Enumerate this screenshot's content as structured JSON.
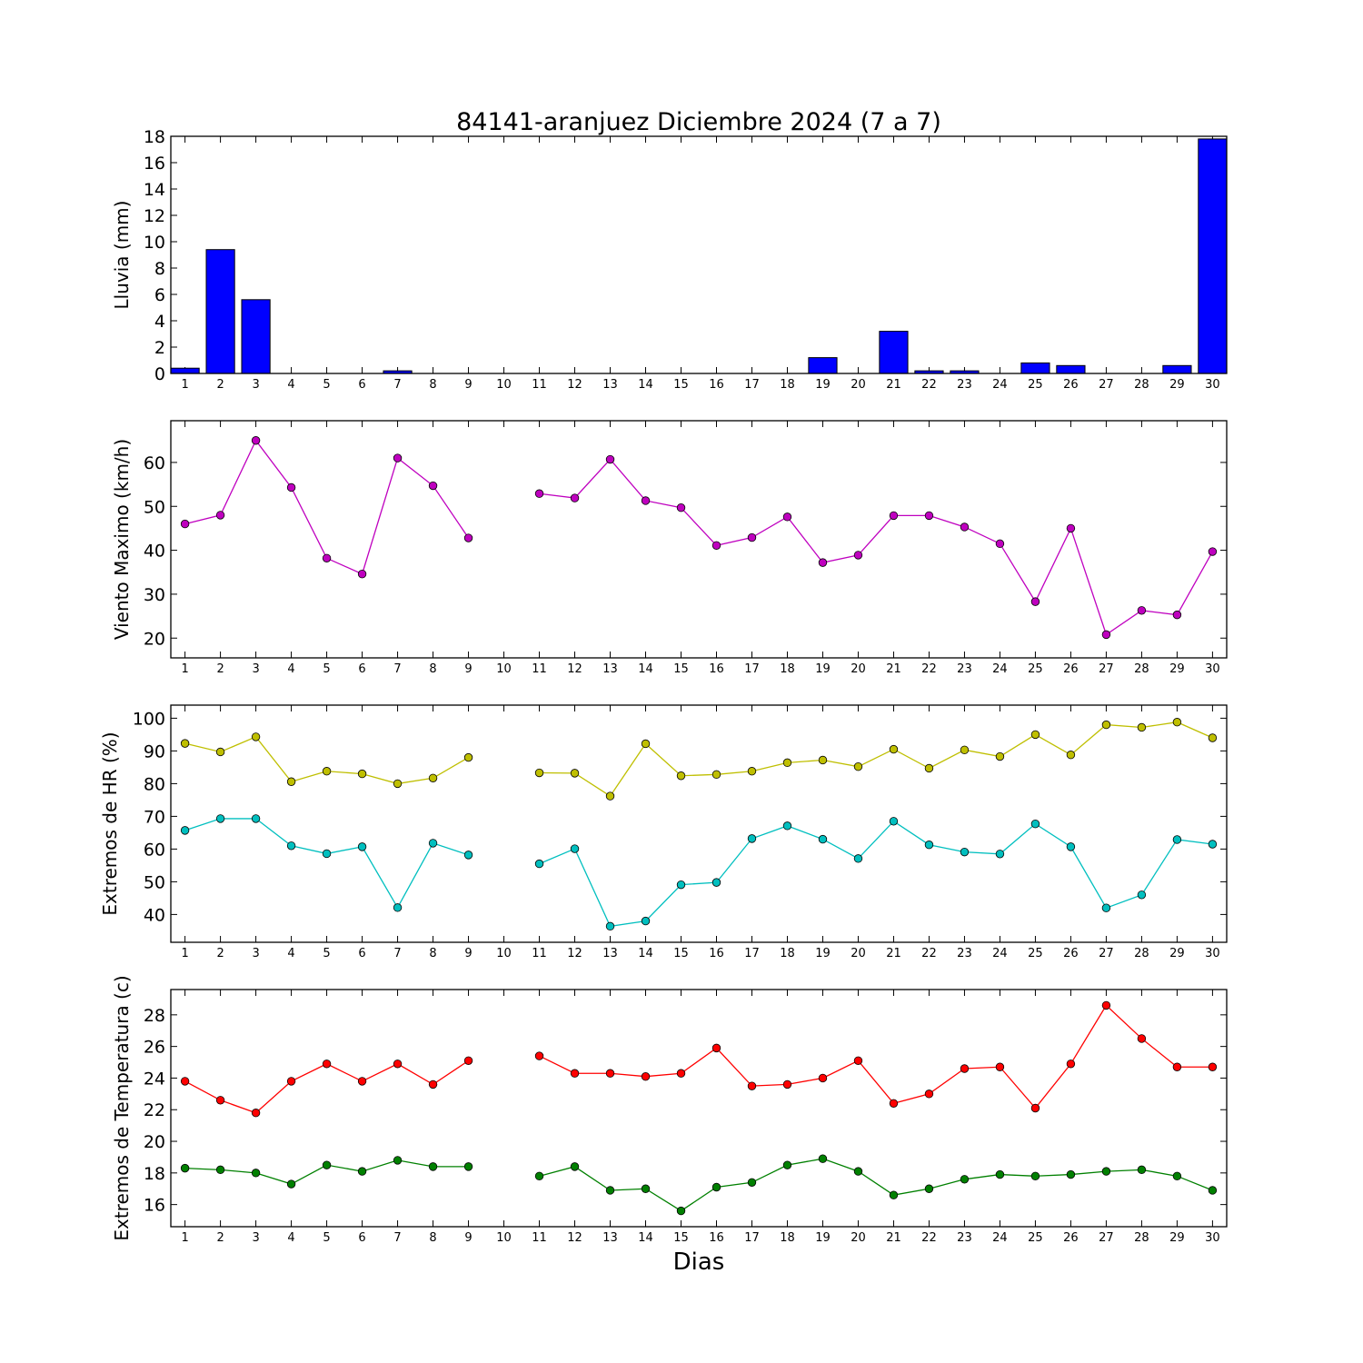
{
  "title": "84141-aranjuez Diciembre 2024  (7 a 7)",
  "xlabel": "Dias",
  "chart_data": [
    {
      "type": "bar",
      "ylabel": "Lluvia (mm)",
      "ylim": [
        0,
        18
      ],
      "yticks": [
        0,
        2,
        4,
        6,
        8,
        10,
        12,
        14,
        16,
        18
      ],
      "categories": [
        "1",
        "2",
        "3",
        "4",
        "5",
        "6",
        "7",
        "8",
        "9",
        "10",
        "11",
        "12",
        "13",
        "14",
        "15",
        "16",
        "17",
        "18",
        "19",
        "20",
        "21",
        "22",
        "23",
        "24",
        "25",
        "26",
        "27",
        "28",
        "29",
        "30"
      ],
      "values": [
        0.4,
        9.4,
        5.6,
        0,
        0,
        0,
        0.2,
        0,
        0,
        0,
        0,
        0,
        0,
        0,
        0,
        0,
        0,
        0,
        1.2,
        0,
        3.2,
        0.2,
        0.2,
        0,
        0.8,
        0.6,
        0,
        0,
        0.6,
        17.8
      ],
      "color": "#0000ff"
    },
    {
      "type": "line",
      "ylabel": "Viento Maximo (km/h)",
      "ylim": [
        15.5,
        69.5
      ],
      "yticks": [
        20,
        30,
        40,
        50,
        60
      ],
      "categories": [
        "1",
        "2",
        "3",
        "4",
        "5",
        "6",
        "7",
        "8",
        "9",
        "10",
        "11",
        "12",
        "13",
        "14",
        "15",
        "16",
        "17",
        "18",
        "19",
        "20",
        "21",
        "22",
        "23",
        "24",
        "25",
        "26",
        "27",
        "28",
        "29",
        "30"
      ],
      "series": [
        {
          "color": "#bf00bf",
          "values": [
            46,
            48,
            65,
            54.3,
            38.2,
            34.6,
            61,
            54.7,
            42.8,
            null,
            52.9,
            51.9,
            60.7,
            51.3,
            49.7,
            41.1,
            42.9,
            47.6,
            37.2,
            38.9,
            47.9,
            47.9,
            45.3,
            41.5,
            28.3,
            45,
            20.8,
            26.3,
            25.3,
            39.7
          ]
        }
      ]
    },
    {
      "type": "line",
      "ylabel": "Extremos de HR (%)",
      "ylim": [
        31.5,
        104
      ],
      "yticks": [
        40,
        50,
        60,
        70,
        80,
        90,
        100
      ],
      "categories": [
        "1",
        "2",
        "3",
        "4",
        "5",
        "6",
        "7",
        "8",
        "9",
        "10",
        "11",
        "12",
        "13",
        "14",
        "15",
        "16",
        "17",
        "18",
        "19",
        "20",
        "21",
        "22",
        "23",
        "24",
        "25",
        "26",
        "27",
        "28",
        "29",
        "30"
      ],
      "series": [
        {
          "color": "#bfbf00",
          "values": [
            92.3,
            89.7,
            94.3,
            80.6,
            83.8,
            83,
            80,
            81.7,
            88,
            null,
            83.3,
            83.2,
            76.2,
            92.2,
            82.4,
            82.8,
            83.8,
            86.4,
            87.2,
            85.2,
            90.5,
            84.7,
            90.3,
            88.3,
            95,
            88.8,
            98,
            97.2,
            98.8,
            94
          ]
        },
        {
          "color": "#00bfbf",
          "values": [
            65.7,
            69.3,
            69.3,
            61,
            58.6,
            60.7,
            42.1,
            61.8,
            58.2,
            null,
            55.5,
            60.1,
            36.4,
            38,
            49.1,
            49.8,
            63.2,
            67.1,
            63,
            57.1,
            68.5,
            61.3,
            59.1,
            58.5,
            67.7,
            60.7,
            42,
            46,
            62.9,
            61.5
          ]
        }
      ]
    },
    {
      "type": "line",
      "ylabel": "Extremos de Temperatura (c)",
      "ylim": [
        14.6,
        29.6
      ],
      "yticks": [
        16,
        18,
        20,
        22,
        24,
        26,
        28
      ],
      "categories": [
        "1",
        "2",
        "3",
        "4",
        "5",
        "6",
        "7",
        "8",
        "9",
        "10",
        "11",
        "12",
        "13",
        "14",
        "15",
        "16",
        "17",
        "18",
        "19",
        "20",
        "21",
        "22",
        "23",
        "24",
        "25",
        "26",
        "27",
        "28",
        "29",
        "30"
      ],
      "series": [
        {
          "color": "#ff0000",
          "values": [
            23.8,
            22.6,
            21.8,
            23.8,
            24.9,
            23.8,
            24.9,
            23.6,
            25.1,
            null,
            25.4,
            24.3,
            24.3,
            24.1,
            24.3,
            25.9,
            23.5,
            23.6,
            24,
            25.1,
            22.4,
            23,
            24.6,
            24.7,
            22.1,
            24.9,
            28.6,
            26.5,
            24.7,
            24.7
          ]
        },
        {
          "color": "#008000",
          "values": [
            18.3,
            18.2,
            18,
            17.3,
            18.5,
            18.1,
            18.8,
            18.4,
            18.4,
            null,
            17.8,
            18.4,
            16.9,
            17,
            15.6,
            17.1,
            17.4,
            18.5,
            18.9,
            18.1,
            16.6,
            17,
            17.6,
            17.9,
            17.8,
            17.9,
            18.1,
            18.2,
            17.8,
            16.9
          ]
        }
      ]
    }
  ]
}
